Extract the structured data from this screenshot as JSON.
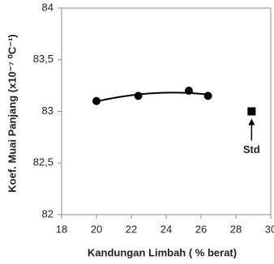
{
  "chart_data": {
    "type": "scatter",
    "x_label": "Kandungan Limbah ( % berat)",
    "y_label": "Koef. Muai Panjang (x10⁻⁷ ⁰C⁻¹)",
    "xlim": [
      18,
      30
    ],
    "xticks": [
      18,
      20,
      22,
      24,
      26,
      28,
      30
    ],
    "ylim": [
      82,
      84
    ],
    "yticks": [
      {
        "value": 82,
        "label": "82"
      },
      {
        "value": 82.5,
        "label": "82,5"
      },
      {
        "value": 83,
        "label": "83"
      },
      {
        "value": 83.5,
        "label": "83,5"
      },
      {
        "value": 84,
        "label": "84"
      }
    ],
    "series": [
      {
        "color": "#000000",
        "marker": "circle",
        "trendline": true,
        "x": [
          20,
          22.4,
          25.3,
          26.4
        ],
        "values": [
          83.1,
          83.15,
          83.2,
          83.15
        ]
      },
      {
        "name": "Std",
        "color": "#000000",
        "marker": "square",
        "x": [
          28.9
        ],
        "values": [
          83
        ]
      }
    ]
  }
}
